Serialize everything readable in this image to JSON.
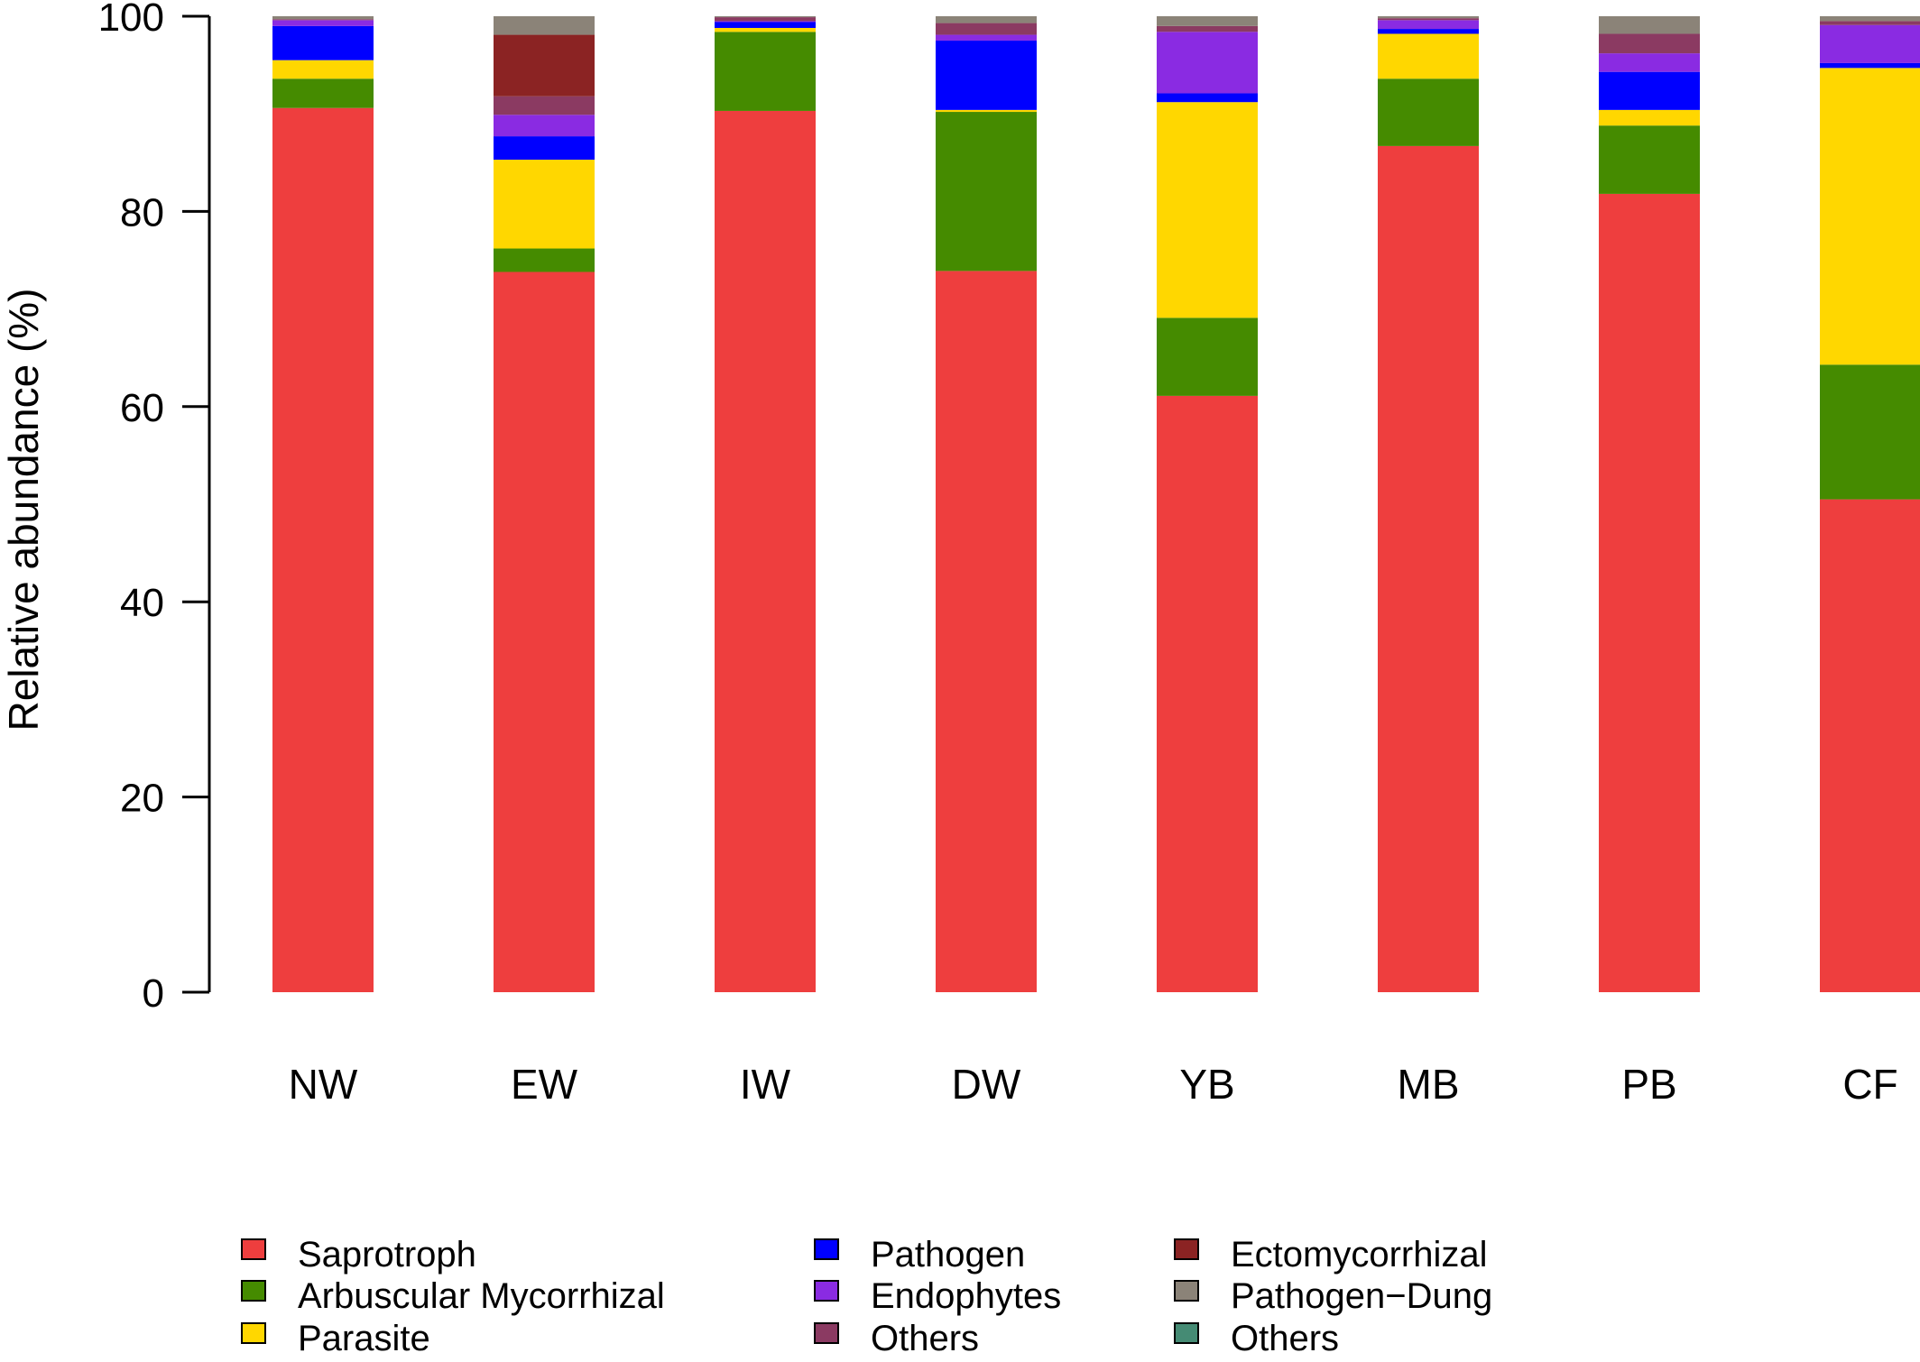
{
  "chart_data": {
    "type": "bar",
    "stacked": true,
    "categories": [
      "NW",
      "EW",
      "IW",
      "DW",
      "YB",
      "MB",
      "PB",
      "CF"
    ],
    "ylabel": "Relative abundance (%)",
    "xlabel": "",
    "ylim": [
      0,
      100
    ],
    "yticks": [
      0,
      20,
      40,
      60,
      80,
      100
    ],
    "grid": false,
    "legend_position": "bottom",
    "series": [
      {
        "name": "Saprotroph",
        "color": "#ee3e3e",
        "values": [
          90.6,
          73.8,
          90.3,
          73.9,
          61.1,
          86.7,
          81.8,
          50.5
        ]
      },
      {
        "name": "Arbuscular Mycorrhizal",
        "color": "#458b00",
        "values": [
          3.0,
          2.4,
          8.1,
          16.3,
          8.0,
          6.9,
          7.0,
          13.8
        ]
      },
      {
        "name": "Parasite",
        "color": "#ffd700",
        "values": [
          1.9,
          9.1,
          0.4,
          0.2,
          22.1,
          4.6,
          1.6,
          30.4
        ]
      },
      {
        "name": "Pathogen",
        "color": "#0000ff",
        "values": [
          3.5,
          2.4,
          0.6,
          7.1,
          0.9,
          0.5,
          3.9,
          0.5
        ]
      },
      {
        "name": "Endophytes",
        "color": "#8a2be2",
        "values": [
          0.6,
          2.2,
          0.1,
          0.6,
          6.3,
          0.9,
          1.9,
          3.9
        ]
      },
      {
        "name": "Others",
        "color": "#8b3a62",
        "values": [
          0.1,
          1.9,
          0.4,
          1.2,
          0.6,
          0.2,
          2.0,
          0.4
        ]
      },
      {
        "name": "Ectomycorrhizal",
        "color": "#8b2323",
        "values": [
          0.0,
          6.3,
          0.0,
          0.0,
          0.0,
          0.0,
          0.0,
          0.0
        ]
      },
      {
        "name": "Pathogen−Dung",
        "color": "#8b8378",
        "values": [
          0.3,
          1.9,
          0.1,
          0.7,
          1.0,
          0.2,
          1.8,
          0.5
        ]
      },
      {
        "name": "Others",
        "color": "#458b74",
        "values": [
          0,
          0,
          0,
          0,
          0,
          0,
          0,
          0
        ]
      }
    ]
  }
}
